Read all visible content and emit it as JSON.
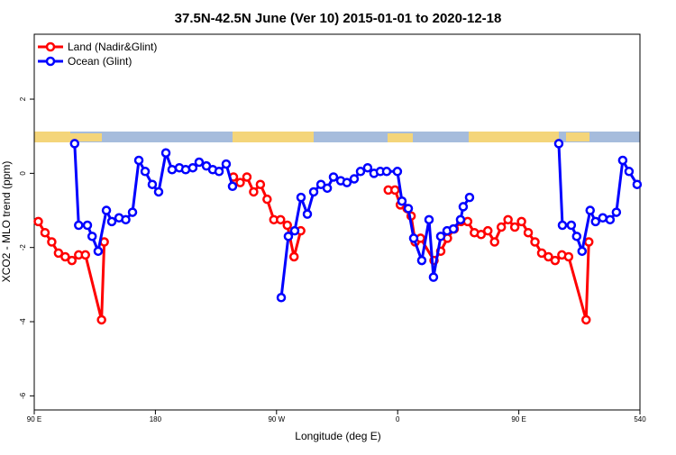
{
  "chart_data": {
    "type": "line",
    "title": "37.5N-42.5N June (Ver 10)   2015-01-01 to 2020-12-18",
    "x_label": "Longitude (deg E)",
    "y_label": "XCO2 - MLO trend (ppm)",
    "xlim": [
      90,
      540
    ],
    "ylim": [
      -6.38,
      3.75
    ],
    "xticks": [
      {
        "value": 90,
        "label": "90 E"
      },
      180,
      {
        "value": 270,
        "label": "90 W"
      },
      {
        "value": 360,
        "label": "0"
      },
      {
        "value": 450,
        "label": "90 E"
      },
      540
    ],
    "yticks": [
      -6,
      -4,
      -2,
      0,
      2
    ],
    "legend": "top-left",
    "series": [
      {
        "name": "Land (Nadir&Glint)",
        "color": "#ff0000",
        "x": [
          93,
          98,
          103,
          108,
          113,
          118,
          123,
          128,
          140,
          142,
          190,
          238,
          243,
          248,
          253,
          258,
          263,
          268,
          273,
          278,
          283,
          288,
          320,
          353,
          358,
          362,
          367,
          370,
          373,
          377,
          387,
          392,
          397,
          402,
          407,
          412,
          417,
          422,
          427,
          432,
          437,
          442,
          447,
          452,
          457,
          462,
          467,
          472,
          477,
          482,
          487,
          500,
          502
        ],
        "values": [
          -1.3,
          -1.6,
          -1.85,
          -2.15,
          -2.25,
          -2.35,
          -2.2,
          -2.2,
          -3.95,
          -1.85,
          null,
          -0.1,
          -0.25,
          -0.1,
          -0.5,
          -0.3,
          -0.7,
          -1.25,
          -1.25,
          -1.4,
          -2.25,
          -1.55,
          null,
          -0.45,
          -0.45,
          -0.85,
          -0.95,
          -1.15,
          -1.85,
          -1.75,
          -2.35,
          -2.1,
          -1.75,
          -1.5,
          -1.3,
          -1.3,
          -1.6,
          -1.65,
          -1.55,
          -1.85,
          -1.45,
          -1.25,
          -1.45,
          -1.3,
          -1.6,
          -1.85,
          -2.15,
          -2.25,
          -2.35,
          -2.2,
          -2.25,
          -3.95,
          -1.85
        ]
      },
      {
        "name": "Ocean (Glint)",
        "color": "#0000ff",
        "x": [
          120,
          123,
          129.5,
          133,
          137.5,
          143.6,
          147.6,
          153,
          158,
          163,
          167.7,
          172.4,
          177.7,
          182.4,
          187.8,
          192.4,
          197.8,
          202.5,
          207.8,
          212.5,
          217.9,
          222.6,
          227.3,
          232.6,
          237.3,
          255,
          273.5,
          278.8,
          283.5,
          288.2,
          292.9,
          297.6,
          303,
          307.7,
          312.3,
          317.7,
          322.3,
          327.7,
          332.4,
          337.7,
          342.4,
          347.1,
          351.8,
          359.8,
          363.2,
          367.9,
          371.9,
          377.9,
          383.3,
          386.6,
          392,
          396.7,
          401.4,
          406.7,
          408.7,
          413.4,
          450,
          479.7,
          482.4,
          489,
          493,
          497,
          503,
          507,
          512.4,
          517.8,
          522.5,
          527.2,
          531.9,
          537.9
        ],
        "values": [
          0.8,
          -1.4,
          -1.4,
          -1.7,
          -2.1,
          -1.0,
          -1.3,
          -1.2,
          -1.25,
          -1.05,
          0.35,
          0.05,
          -0.3,
          -0.5,
          0.55,
          0.1,
          0.15,
          0.1,
          0.15,
          0.3,
          0.2,
          0.1,
          0.05,
          0.25,
          -0.35,
          null,
          -3.35,
          -1.7,
          -1.55,
          -0.65,
          -1.1,
          -0.5,
          -0.3,
          -0.4,
          -0.1,
          -0.2,
          -0.25,
          -0.15,
          0.05,
          0.15,
          0.0,
          0.05,
          0.05,
          0.05,
          -0.75,
          -0.95,
          -1.75,
          -2.35,
          -1.25,
          -2.8,
          -1.7,
          -1.55,
          -1.5,
          -1.25,
          -0.9,
          -0.65,
          null,
          0.8,
          -1.4,
          -1.4,
          -1.7,
          -2.1,
          -1.0,
          -1.3,
          -1.2,
          -1.25,
          -1.05,
          0.35,
          0.05,
          -0.3
        ]
      }
    ]
  }
}
